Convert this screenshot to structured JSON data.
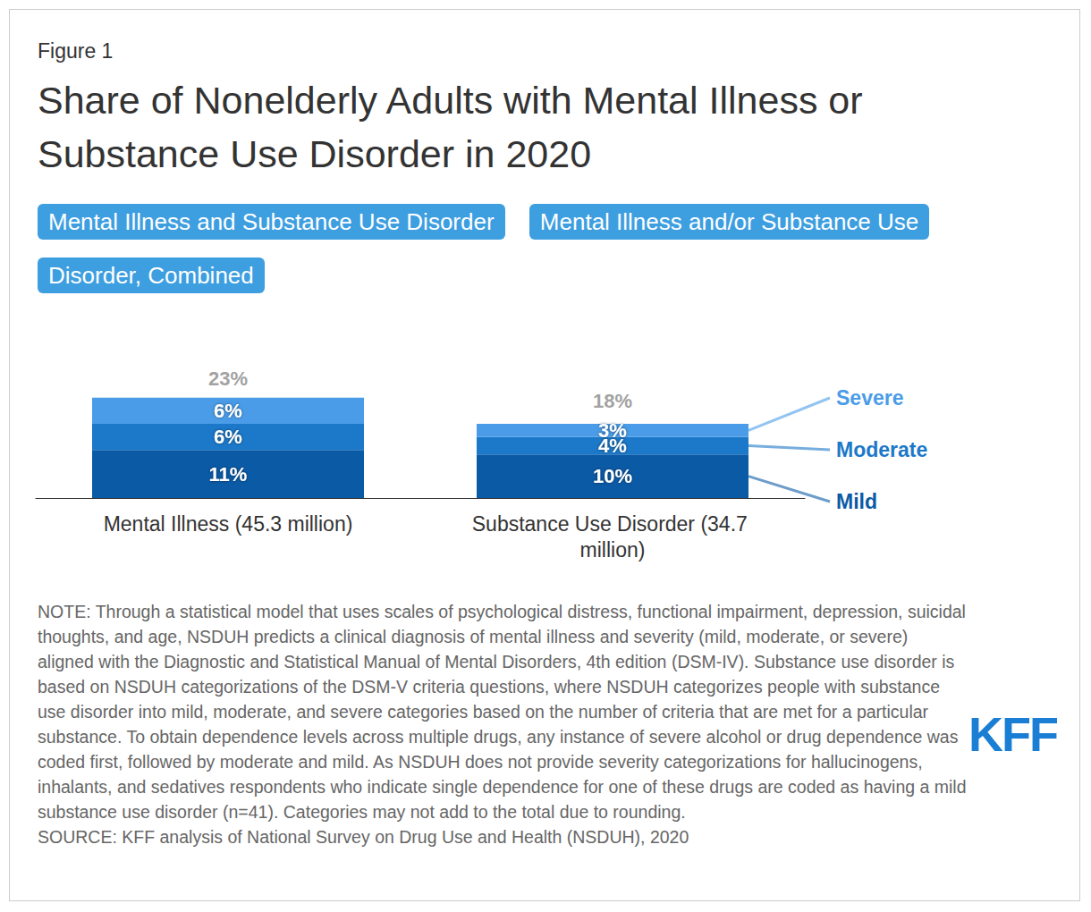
{
  "figure_label": "Figure 1",
  "buttons": [
    "Mental Illness and Substance Use Disorder",
    "Mental Illness and/or Substance Use Disorder, Combined"
  ],
  "chart_data": {
    "type": "bar",
    "title": "Share of Nonelderly Adults with Mental Illness or Substance Use Disorder in 2020",
    "categories": [
      "Mental Illness (45.3 million)",
      "Substance Use Disorder (34.7 million)"
    ],
    "series": [
      {
        "name": "Mild",
        "color": "#0b5aa6",
        "values": [
          11,
          10
        ],
        "value_labels": [
          "11%",
          "10%"
        ]
      },
      {
        "name": "Moderate",
        "color": "#1c78c8",
        "values": [
          6,
          4
        ],
        "value_labels": [
          "6%",
          "4%"
        ]
      },
      {
        "name": "Severe",
        "color": "#4a9ce8",
        "values": [
          6,
          3
        ],
        "value_labels": [
          "6%",
          "3%"
        ]
      }
    ],
    "totals": [
      23,
      18
    ],
    "total_labels": [
      "23%",
      "18%"
    ],
    "stacked": true,
    "data_labels": true,
    "ylim": [
      0,
      25
    ],
    "yticks": [
      0,
      25
    ],
    "tick_labels": "x",
    "grid": false
  },
  "note": "NOTE: Through a statistical model that uses scales of psychological distress, functional impairment, depression, suicidal thoughts, and age, NSDUH predicts a clinical diagnosis of mental illness and severity (mild, moderate, or severe) aligned with the Diagnostic and Statistical Manual of Mental Disorders, 4th edition (DSM-IV). Substance use disorder is based on NSDUH categorizations of the DSM-V criteria questions, where NSDUH categorizes people with substance use disorder into mild, moderate, and severe categories based on the number of criteria that are met for a particular substance. To obtain dependence levels across multiple drugs, any instance of severe alcohol or drug dependence was coded first, followed by moderate and mild. As NSDUH does not provide severity categorizations for hallucinogens, inhalants, and sedatives respondents who indicate single dependence for one of these drugs are coded as having a mild substance use disorder (n=41). Categories may not add to the total due to rounding.",
  "source": "SOURCE: KFF analysis of National Survey on Drug Use and Health (NSDUH), 2020",
  "logo": "KFF"
}
